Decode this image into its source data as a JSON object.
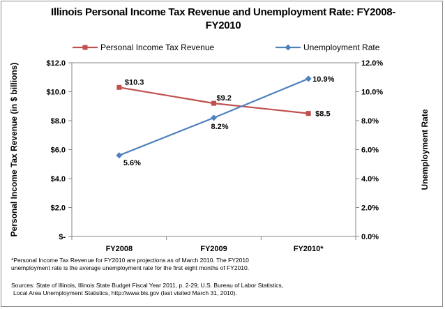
{
  "chart_data": {
    "type": "line",
    "title": "Illinois Personal Income Tax Revenue and Unemployment Rate: FY2008-FY2010",
    "title_line1": "Illinois Personal Income Tax Revenue and Unemployment Rate: FY2008-",
    "title_line2": "FY2010",
    "categories": [
      "FY2008",
      "FY2009",
      "FY2010*"
    ],
    "series": [
      {
        "name": "Personal Income Tax Revenue",
        "axis": "left",
        "color": "#c0504d",
        "marker": "square",
        "values": [
          10.3,
          9.2,
          8.5
        ],
        "labels": [
          "$10.3",
          "$9.2",
          "$8.5"
        ]
      },
      {
        "name": "Unemployment Rate",
        "axis": "right",
        "color": "#4f81bd",
        "marker": "diamond",
        "values": [
          5.6,
          8.2,
          10.9
        ],
        "labels": [
          "5.6%",
          "8.2%",
          "10.9%"
        ]
      }
    ],
    "ylabel": "Personal Income Tax Revenue (in $ billions)",
    "ylabel_right": "Unemployment Rate",
    "ylim": [
      0,
      12
    ],
    "ylim_right": [
      0,
      12
    ],
    "yticks": [
      0,
      2,
      4,
      6,
      8,
      10,
      12
    ],
    "ytick_labels_left": [
      "$-",
      "$2.0",
      "$4.0",
      "$6.0",
      "$8.0",
      "$10.0",
      "$12.0"
    ],
    "ytick_labels_right": [
      "0.0%",
      "2.0%",
      "4.0%",
      "6.0%",
      "8.0%",
      "10.0%",
      "12.0%"
    ],
    "grid": false,
    "legend_position": "top"
  },
  "footnotes": {
    "note_line1": "*Personal Income Tax Revenue for FY2010 are projections as of March 2010. The FY2010",
    "note_line2": "unemployment rate is the average unemployment rate for the first eight months of FY2010.",
    "source_line1": "Sources: State of Illinois, Illinois State Budget Fiscal Year 2011, p. 2-29; U.S. Bureau of Labor Statistics,",
    "source_line2": "Local Area Unemployment Statistics, http://www.bls.gov (last visited March 31, 2010)."
  }
}
